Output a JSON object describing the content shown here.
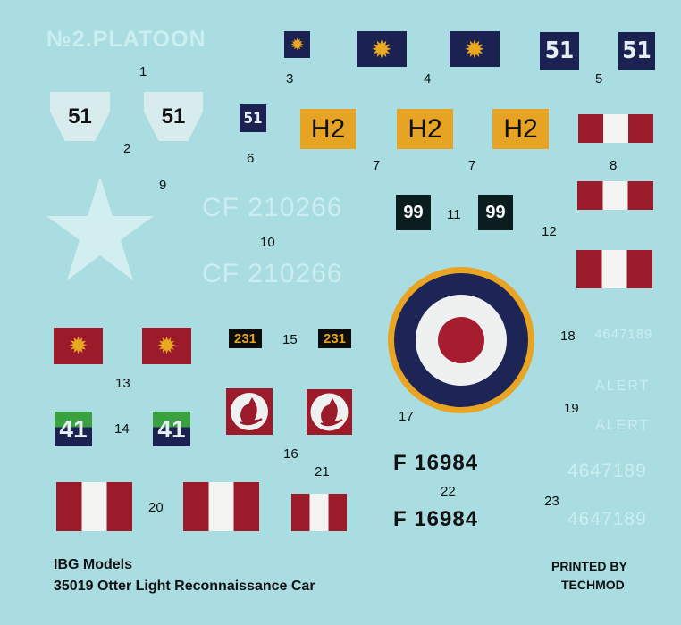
{
  "platoon": "№2.PLATOON",
  "labels": {
    "n1": "1",
    "n2": "2",
    "n3": "3",
    "n4": "4",
    "n5": "5",
    "n6": "6",
    "n7a": "7",
    "n7b": "7",
    "n8": "8",
    "n9": "9",
    "n10": "10",
    "n11": "11",
    "n12": "12",
    "n13": "13",
    "n14": "14",
    "n15": "15",
    "n16": "16",
    "n17": "17",
    "n18": "18",
    "n19": "19",
    "n20": "20",
    "n21": "21",
    "n22": "22",
    "n23": "23"
  },
  "numbers": {
    "fifty_one": "51",
    "h2": "H2",
    "ninety_nine": "99",
    "two_three_one": "231",
    "forty_one": "41",
    "serial_cf": "CF 210266",
    "serial_f": "F 16984",
    "serial_ghost": "4647189",
    "alert": "ALERT"
  },
  "footer": {
    "maker": "IBG Models",
    "kit": "35019 Otter Light Reconnaissance Car",
    "printer_line1": "PRINTED BY",
    "printer_line2": "TECHMOD"
  },
  "colors": {
    "background": "#a9dde1",
    "navy": "#1b2150",
    "maroon": "#9b1b2b",
    "yellow": "#e7a324",
    "green": "#3aa040"
  }
}
